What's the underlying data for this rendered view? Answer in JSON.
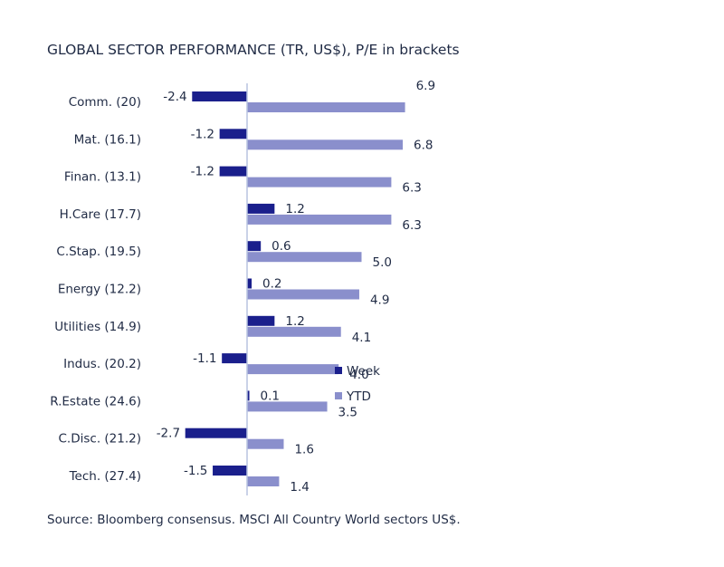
{
  "title": "GLOBAL SECTOR PERFORMANCE (TR, US$), P/E in brackets",
  "source": "Source: Bloomberg consensus. MSCI All Country World sectors US$.",
  "colors": {
    "week": "#1a1f8c",
    "ytd": "#8a8fcc",
    "axis": "#b8c4e0",
    "text": "#1f2a44"
  },
  "chart_data": {
    "type": "bar",
    "orientation": "horizontal",
    "categories": [
      "Comm. (20)",
      "Mat. (16.1)",
      "Finan. (13.1)",
      "H.Care (17.7)",
      "C.Stap. (19.5)",
      "Energy (12.2)",
      "Utilities (14.9)",
      "Indus. (20.2)",
      "R.Estate (24.6)",
      "C.Disc. (21.2)",
      "Tech. (27.4)"
    ],
    "series": [
      {
        "name": "Week",
        "values": [
          -2.4,
          -1.2,
          -1.2,
          1.2,
          0.6,
          0.2,
          1.2,
          -1.1,
          0.1,
          -2.7,
          -1.5
        ]
      },
      {
        "name": "YTD",
        "values": [
          6.9,
          6.8,
          6.3,
          6.3,
          5.0,
          4.9,
          4.1,
          4.0,
          3.5,
          1.6,
          1.4
        ]
      }
    ],
    "value_labels": {
      "Week": [
        "-2.4",
        "-1.2",
        "-1.2",
        "1.2",
        "0.6",
        "0.2",
        "1.2",
        "-1.1",
        "0.1",
        "-2.7",
        "-1.5"
      ],
      "YTD": [
        "6.9",
        "6.8",
        "6.3",
        "6.3",
        "5.0",
        "4.9",
        "4.1",
        "4.0",
        "3.5",
        "1.6",
        "1.4"
      ]
    },
    "legend_position": "right, middle",
    "grid": false
  }
}
